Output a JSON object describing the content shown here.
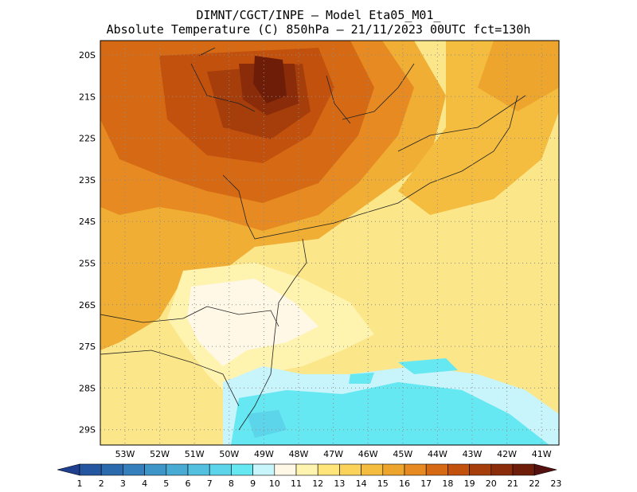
{
  "header": {
    "line1": "DIMNT/CGCT/INPE –  Model Eta05_M01_",
    "line2": "Absolute Temperature (C) 850hPa –  21/11/2023 00UTC fct=130h"
  },
  "map": {
    "lat_labels": [
      "20S",
      "21S",
      "22S",
      "23S",
      "24S",
      "25S",
      "26S",
      "27S",
      "28S",
      "29S"
    ],
    "lon_labels": [
      "53W",
      "52W",
      "51W",
      "50W",
      "49W",
      "48W",
      "47W",
      "46W",
      "45W",
      "44W",
      "43W",
      "42W",
      "41W"
    ]
  },
  "colorbar": {
    "labels": [
      "1",
      "2",
      "3",
      "4",
      "5",
      "6",
      "7",
      "8",
      "9",
      "10",
      "11",
      "12",
      "13",
      "14",
      "15",
      "16",
      "17",
      "18",
      "19",
      "20",
      "21",
      "22",
      "23"
    ],
    "colors": [
      "#1f3f8f",
      "#2556a0",
      "#2c6aae",
      "#3580bc",
      "#3e96c8",
      "#48abd4",
      "#52c0de",
      "#5cd4e9",
      "#66e8f3",
      "#c8f4fb",
      "#fff8e6",
      "#fff3b0",
      "#ffe57a",
      "#fbd35a",
      "#f4bd40",
      "#eda52e",
      "#e68a21",
      "#d66a14",
      "#c2510e",
      "#a63e0b",
      "#8a2c09",
      "#6e1e08",
      "#551010"
    ]
  }
}
